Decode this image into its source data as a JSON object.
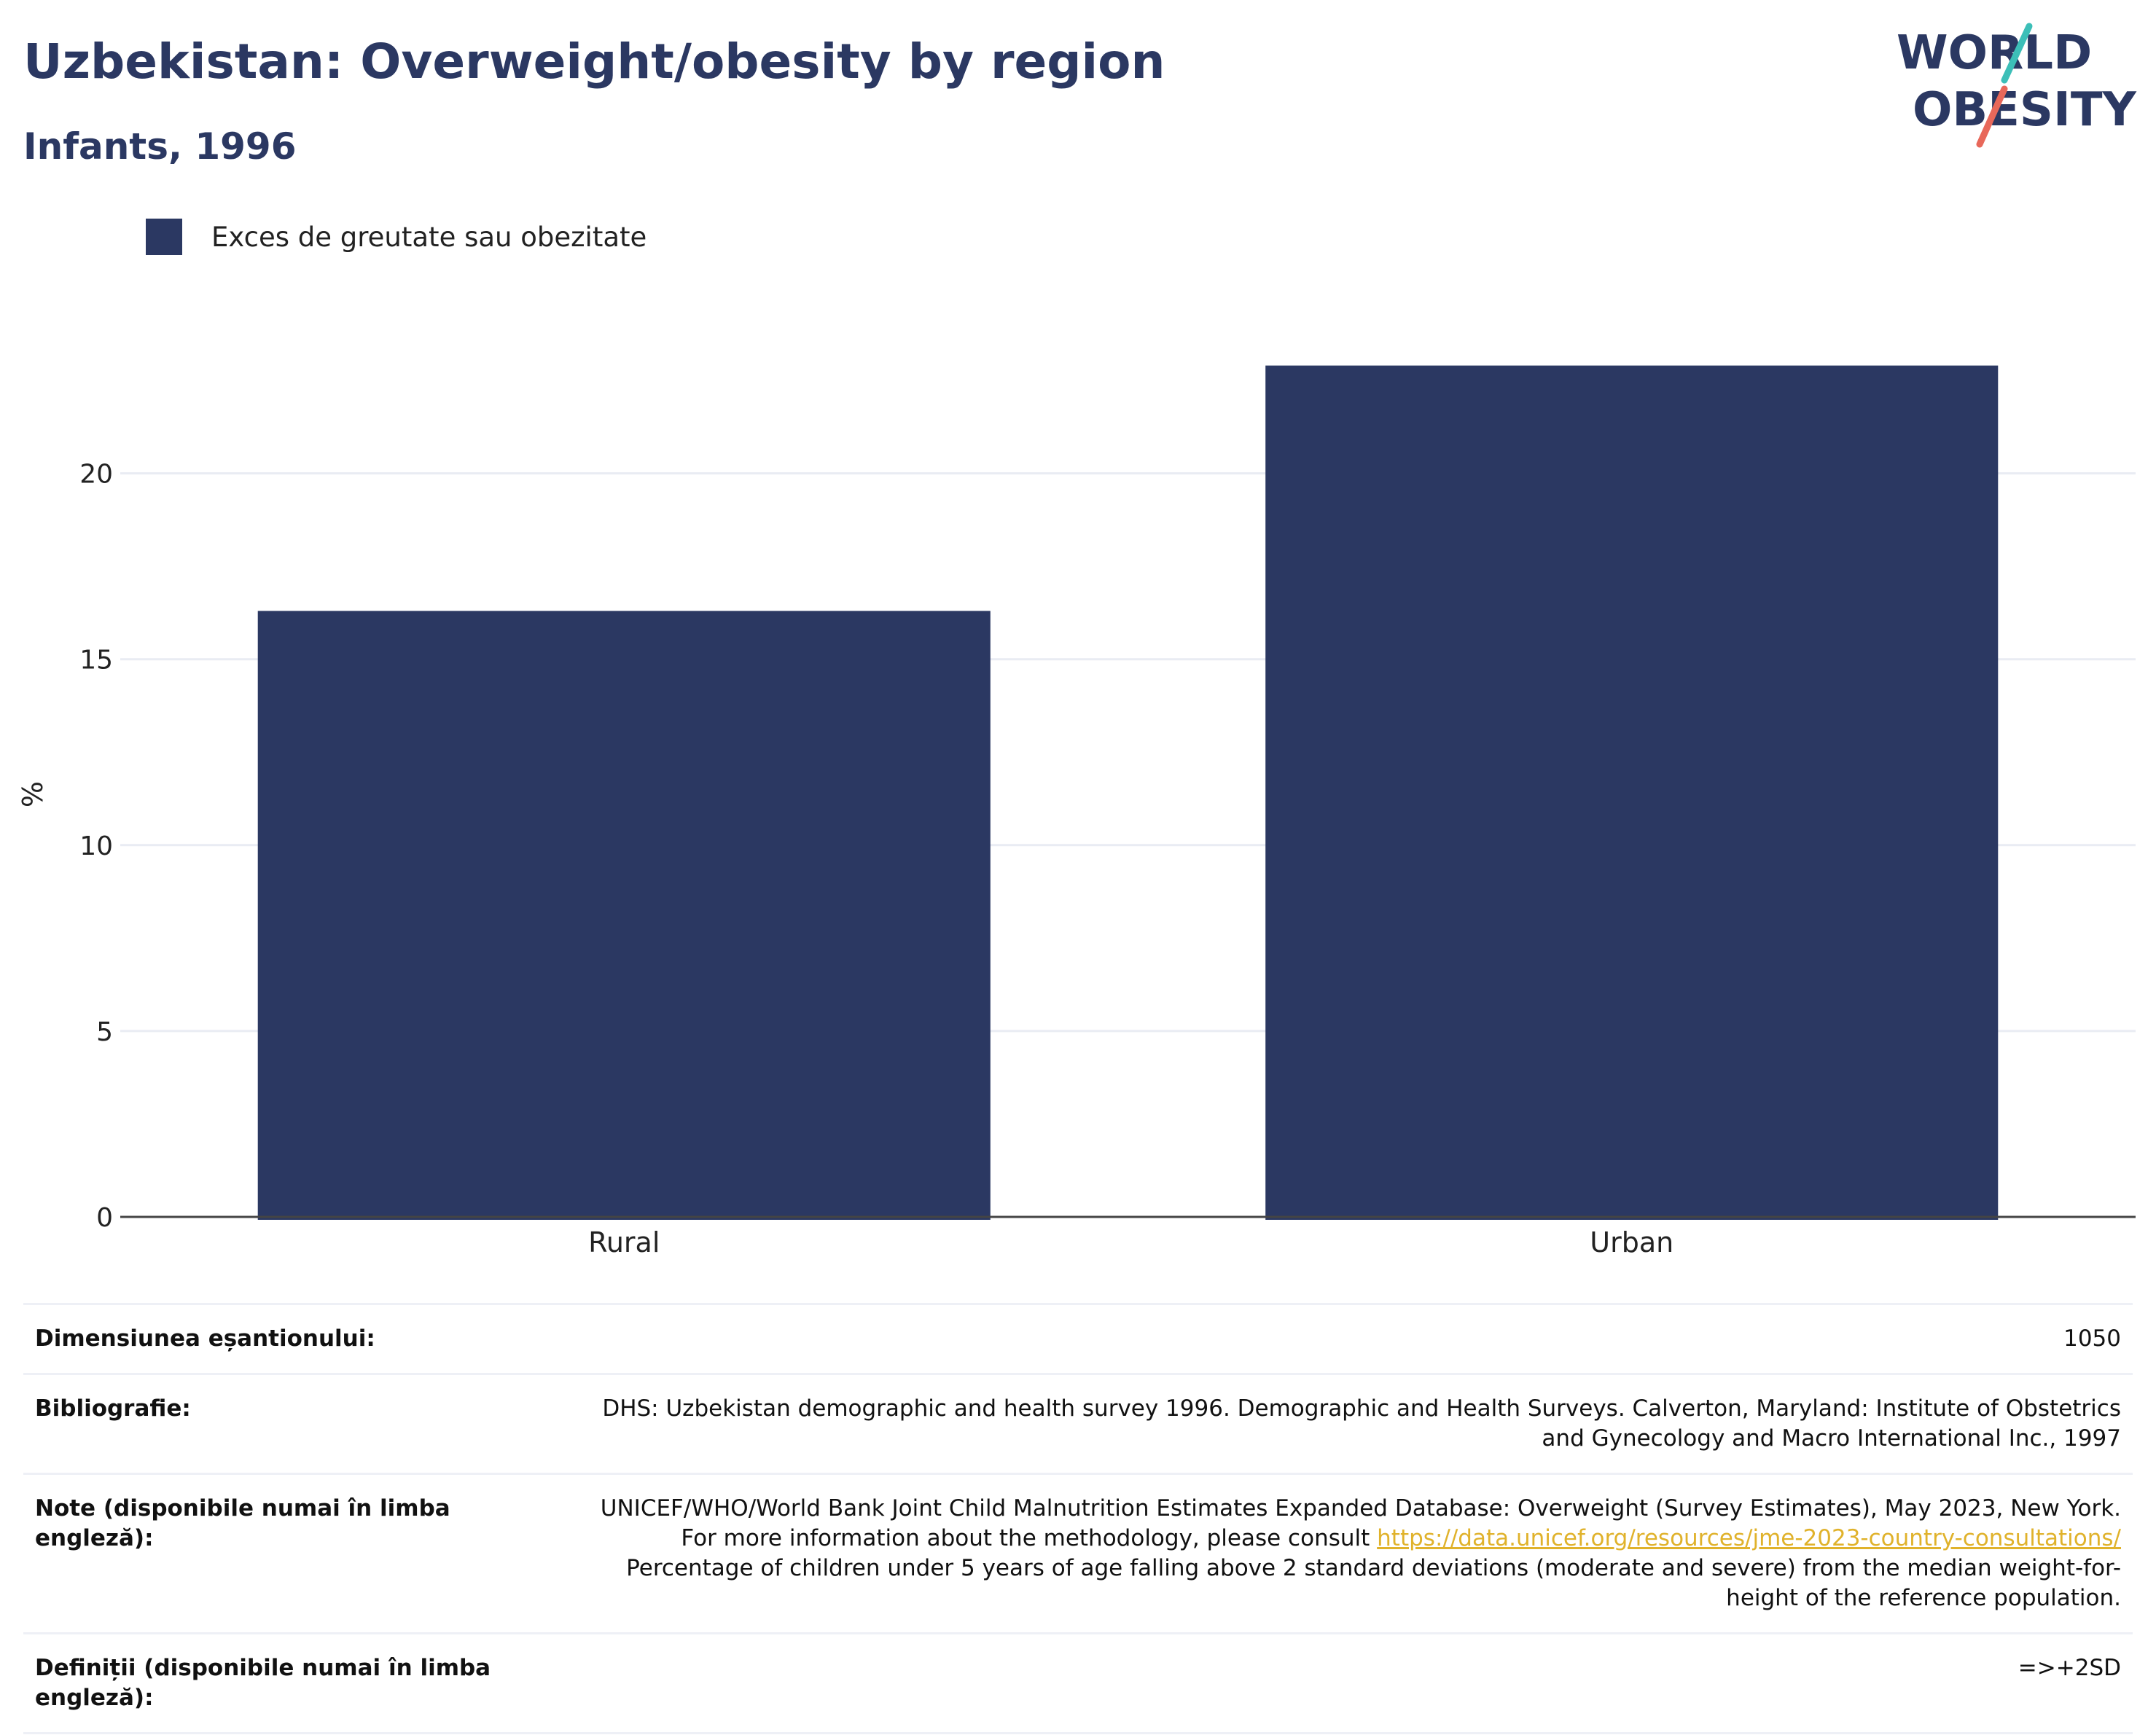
{
  "header": {
    "title": "Uzbekistan: Overweight/obesity by region",
    "subtitle": "Infants, 1996"
  },
  "logo": {
    "line1": "WORLD",
    "line2": "OBESITY",
    "colors": {
      "text": "#2b3862",
      "slash_top": "#3cbfb8",
      "slash_bottom": "#e8685a"
    }
  },
  "legend": {
    "label": "Exces de greutate sau obezitate",
    "color": "#2b3862"
  },
  "chart_data": {
    "type": "bar",
    "categories": [
      "Rural",
      "Urban"
    ],
    "series": [
      {
        "name": "Exces de greutate sau obezitate",
        "values": [
          16.3,
          22.9
        ],
        "color": "#2b3862"
      }
    ],
    "ylabel": "%",
    "ylim": [
      0,
      24.5
    ],
    "yticks": [
      0,
      5,
      10,
      15,
      20
    ],
    "grid": true,
    "legend_position": "top-left"
  },
  "info": {
    "sample_size": {
      "label": "Dimensiunea eșantionului:",
      "value": "1050"
    },
    "bibliography": {
      "label": "Bibliografie:",
      "value": "DHS: Uzbekistan demographic and health survey 1996. Demographic and Health Surveys. Calverton, Maryland: Institute of Obstetrics and Gynecology and Macro International Inc., 1997"
    },
    "notes": {
      "label": "Note (disponibile numai în limba engleză):",
      "text_before": "UNICEF/WHO/World Bank Joint Child Malnutrition Estimates Expanded Database: Overweight (Survey Estimates), May 2023, New York. For more information about the methodology, please consult",
      "link": "https://data.unicef.org/resources/jme-2023-country-consultations/",
      "text_after": "Percentage of children under 5 years of age falling above 2 standard deviations (moderate and severe) from the median weight-for-height of the reference population."
    },
    "definitions": {
      "label": "Definiții (disponibile numai în limba engleză):",
      "value": "=>+2SD"
    }
  }
}
